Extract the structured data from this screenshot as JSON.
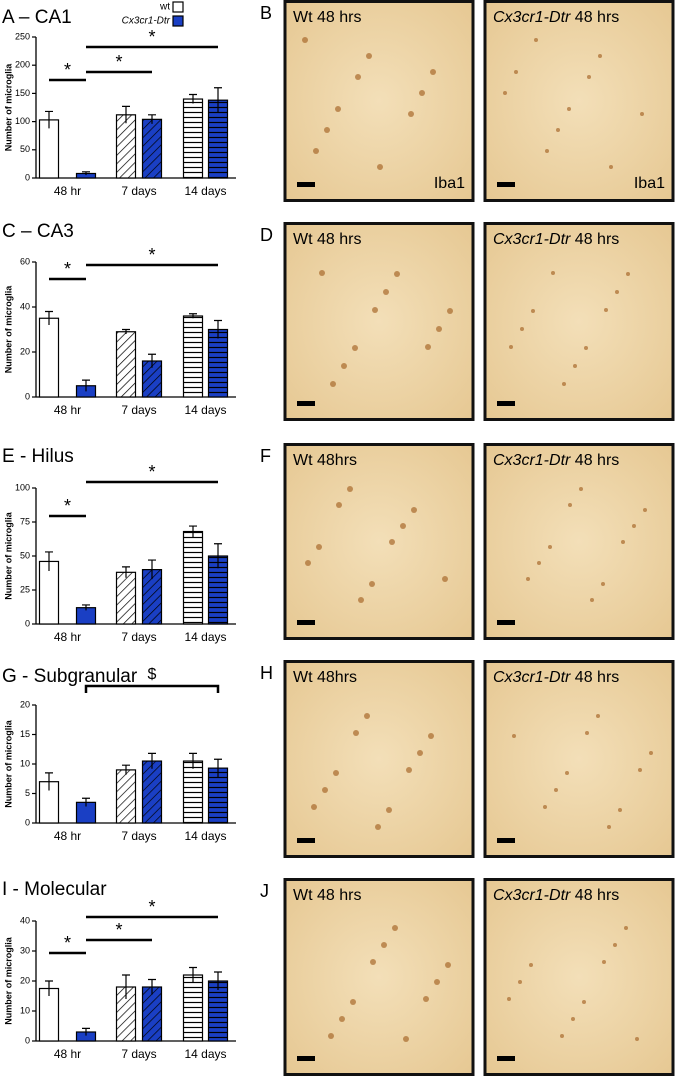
{
  "chart_data": [
    {
      "type": "bar",
      "title": "A – CA1",
      "ylabel": "Number of microglia",
      "categories": [
        "48 hr",
        "7 days",
        "14 days"
      ],
      "patterns": [
        "none",
        "diagonal",
        "horizontal"
      ],
      "legend": true,
      "series": [
        {
          "name": "wt",
          "color": "#ffffff",
          "values": [
            103,
            112,
            140
          ],
          "errors": [
            15,
            15,
            8
          ]
        },
        {
          "name": "Cx3cr1-Dtr",
          "color": "#1a3fc4",
          "values": [
            8,
            104,
            138
          ],
          "errors": [
            3,
            8,
            22
          ]
        }
      ],
      "ylim": [
        0,
        250
      ],
      "yticks": [
        0,
        50,
        100,
        150,
        200,
        250
      ],
      "annotations": [
        "*",
        "*",
        "*"
      ]
    },
    {
      "type": "bar",
      "title": "C – CA3",
      "ylabel": "Number of microglia",
      "categories": [
        "48 hr",
        "7 days",
        "14 days"
      ],
      "patterns": [
        "none",
        "diagonal",
        "horizontal"
      ],
      "legend": false,
      "series": [
        {
          "name": "wt",
          "color": "#ffffff",
          "values": [
            35,
            29,
            36
          ],
          "errors": [
            3,
            1,
            1
          ]
        },
        {
          "name": "Cx3cr1-Dtr",
          "color": "#1a3fc4",
          "values": [
            5,
            16,
            30
          ],
          "errors": [
            2.5,
            3,
            4
          ]
        }
      ],
      "ylim": [
        0,
        60
      ],
      "yticks": [
        0,
        20,
        40,
        60
      ],
      "annotations": [
        "*",
        "*"
      ]
    },
    {
      "type": "bar",
      "title": "E - Hilus",
      "ylabel": "Number of microglia",
      "categories": [
        "48 hr",
        "7 days",
        "14 days"
      ],
      "patterns": [
        "none",
        "diagonal",
        "horizontal"
      ],
      "legend": false,
      "series": [
        {
          "name": "wt",
          "color": "#ffffff",
          "values": [
            46,
            38,
            68
          ],
          "errors": [
            7,
            4,
            4
          ]
        },
        {
          "name": "Cx3cr1-Dtr",
          "color": "#1a3fc4",
          "values": [
            12,
            40,
            50
          ],
          "errors": [
            2,
            7,
            9
          ]
        }
      ],
      "ylim": [
        0,
        100
      ],
      "yticks": [
        0,
        25,
        50,
        75,
        100
      ],
      "annotations": [
        "*",
        "*"
      ]
    },
    {
      "type": "bar",
      "title": "G - Subgranular",
      "ylabel": "Number of microglia",
      "categories": [
        "48 hr",
        "7 days",
        "14 days"
      ],
      "patterns": [
        "none",
        "diagonal",
        "horizontal"
      ],
      "legend": false,
      "series": [
        {
          "name": "wt",
          "color": "#ffffff",
          "values": [
            7,
            9,
            10.5
          ],
          "errors": [
            1.5,
            0.8,
            1.3
          ]
        },
        {
          "name": "Cx3cr1-Dtr",
          "color": "#1a3fc4",
          "values": [
            3.5,
            10.5,
            9.3
          ],
          "errors": [
            0.7,
            1.3,
            1.5
          ]
        }
      ],
      "ylim": [
        0,
        20
      ],
      "yticks": [
        0,
        5,
        10,
        15,
        20
      ],
      "annotations": [
        "$"
      ]
    },
    {
      "type": "bar",
      "title": "I - Molecular",
      "ylabel": "Number of microglia",
      "categories": [
        "48 hr",
        "7 days",
        "14 days"
      ],
      "patterns": [
        "none",
        "diagonal",
        "horizontal"
      ],
      "legend": false,
      "series": [
        {
          "name": "wt",
          "color": "#ffffff",
          "values": [
            17.5,
            18,
            22
          ],
          "errors": [
            2.5,
            4,
            2.5
          ]
        },
        {
          "name": "Cx3cr1-Dtr",
          "color": "#1a3fc4",
          "values": [
            3,
            18,
            20
          ],
          "errors": [
            1.2,
            2.5,
            3
          ]
        }
      ],
      "ylim": [
        0,
        40
      ],
      "yticks": [
        0,
        10,
        20,
        30,
        40
      ],
      "annotations": [
        "*",
        "*",
        "*"
      ]
    }
  ],
  "images": [
    {
      "panel": "B",
      "left": "Wt 48 hrs",
      "right_italic": "Cx3cr1-Dtr",
      "right": "48 hrs",
      "stain": "Iba1"
    },
    {
      "panel": "D",
      "left": "Wt 48 hrs",
      "right_italic": "Cx3cr1-Dtr",
      "right": "48 hrs"
    },
    {
      "panel": "F",
      "left": "Wt 48hrs",
      "right_italic": "Cx3cr1-Dtr",
      "right": "48 hrs"
    },
    {
      "panel": "H",
      "left": "Wt 48hrs",
      "right_italic": "Cx3cr1-Dtr",
      "right": "48 hrs"
    },
    {
      "panel": "J",
      "left": "Wt 48 hrs",
      "right_italic": "Cx3cr1-Dtr",
      "right": "48 hrs"
    }
  ]
}
